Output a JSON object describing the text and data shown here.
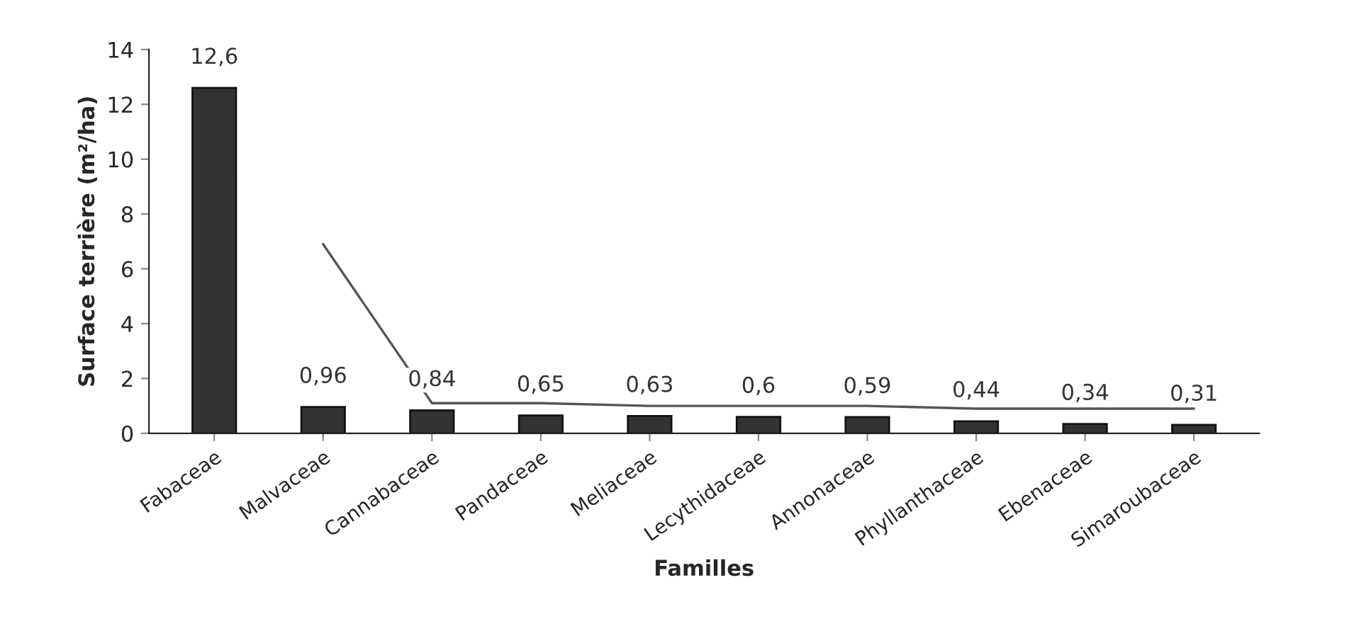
{
  "chart_data": {
    "type": "bar",
    "xlabel": "Familles",
    "ylabel": "Surface terrière (m²/ha)",
    "categories": [
      "Fabaceae",
      "Malvaceae",
      "Cannabaceae",
      "Pandaceae",
      "Meliaceae",
      "Lecythidaceae",
      "Annonaceae",
      "Phyllanthaceae",
      "Ebenaceae",
      "Simaroubaceae"
    ],
    "series": [
      {
        "color": "#333333",
        "values": [
          12.6,
          0.96,
          0.84,
          0.65,
          0.63,
          0.6,
          0.59,
          0.44,
          0.34,
          0.31
        ],
        "value_labels": [
          "12,6",
          "0,96",
          "0,84",
          "0,65",
          "0,63",
          "0,6",
          "0,59",
          "0,44",
          "0,34",
          "0,31"
        ]
      },
      {
        "type": "line",
        "color": "#555555",
        "values": [
          null,
          6.9,
          1.1,
          1.1,
          1.0,
          1.0,
          1.0,
          0.9,
          0.9,
          0.9
        ]
      }
    ],
    "ylim": [
      0,
      14
    ],
    "yticks": [
      0,
      2,
      4,
      6,
      8,
      10,
      12,
      14
    ],
    "grid": false,
    "legend": false
  }
}
